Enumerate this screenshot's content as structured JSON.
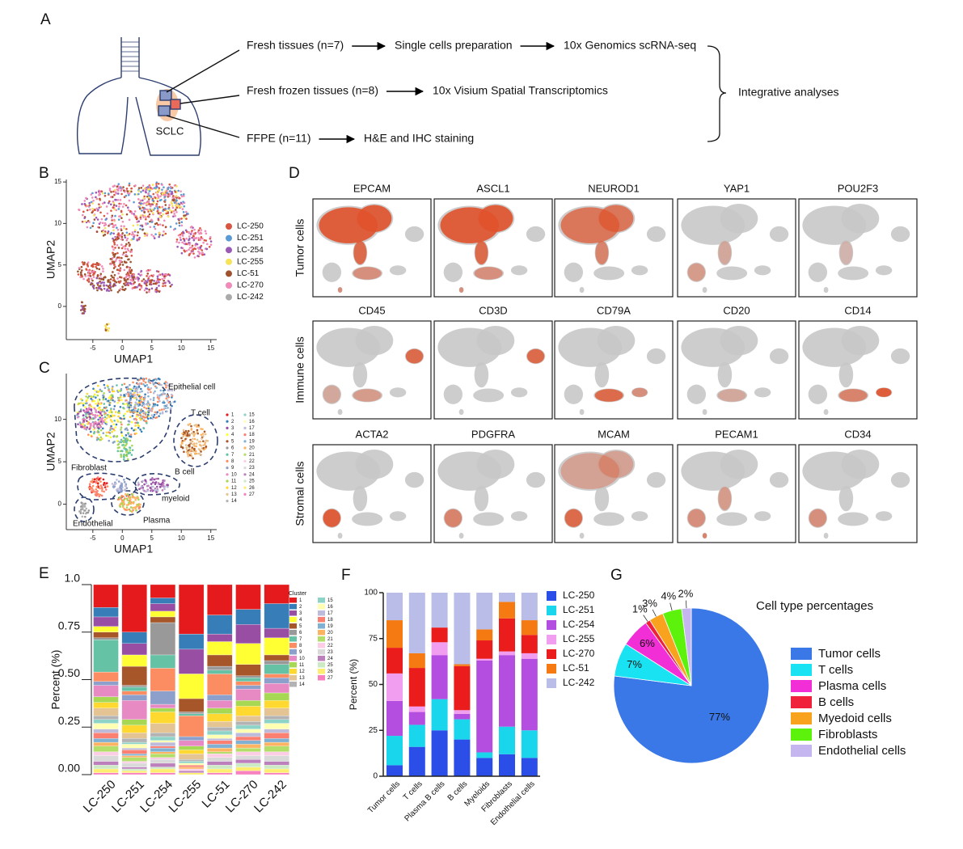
{
  "panel_labels": [
    "A",
    "B",
    "C",
    "D",
    "E",
    "F",
    "G"
  ],
  "panel_a": {
    "organ": "SCLC",
    "flows": [
      [
        "Fresh tissues (n=7)",
        "Single cells preparation",
        "10x Genomics scRNA-seq"
      ],
      [
        "Fresh frozen tissues (n=8)",
        "10x Visium Spatial Transcriptomics"
      ],
      [
        "FFPE (n=11)",
        "H&E and IHC staining"
      ]
    ],
    "integration": "Integrative analyses"
  },
  "panel_d": {
    "rows": [
      {
        "label": "Tumor cells",
        "genes": [
          "EPCAM",
          "ASCL1",
          "NEUROD1",
          "YAP1",
          "POU2F3"
        ]
      },
      {
        "label": "Immune cells",
        "genes": [
          "CD45",
          "CD3D",
          "CD79A",
          "CD20",
          "CD14"
        ]
      },
      {
        "label": "Stromal cells",
        "genes": [
          "ACTA2",
          "PDGFRA",
          "MCAM",
          "PECAM1",
          "CD34"
        ]
      }
    ]
  },
  "chart_data": [
    {
      "type": "scatter",
      "x_label": "UMAP1",
      "y_label": "UMAP2",
      "xlim": [
        -9.5,
        16
      ],
      "ylim": [
        -4,
        15.3
      ],
      "xticks": [
        -5,
        0,
        5,
        10,
        15
      ],
      "yticks": [
        0,
        5,
        10,
        15
      ],
      "series": [
        {
          "name": "LC-250",
          "color": "#d9553f"
        },
        {
          "name": "LC-251",
          "color": "#5b9bd5"
        },
        {
          "name": "LC-254",
          "color": "#9b59b6"
        },
        {
          "name": "LC-255",
          "color": "#f7e35a"
        },
        {
          "name": "LC-51",
          "color": "#a0522d"
        },
        {
          "name": "LC-270",
          "color": "#f08ab8"
        },
        {
          "name": "LC-242",
          "color": "#aaaaaa"
        }
      ]
    },
    {
      "type": "scatter",
      "x_label": "UMAP1",
      "y_label": "UMAP2",
      "xlim": [
        -9.5,
        16
      ],
      "ylim": [
        -3,
        15.4
      ],
      "xticks": [
        -5,
        0,
        5,
        10,
        15
      ],
      "yticks": [
        0,
        5,
        10
      ],
      "annotations": [
        "Epithelial cell",
        "T cell",
        "Fibroblast",
        "B cell",
        "myeloid",
        "Plasma",
        "Endothelial"
      ],
      "series": [
        {
          "name": "1",
          "color": "#e41a1c"
        },
        {
          "name": "2",
          "color": "#377eb8"
        },
        {
          "name": "3",
          "color": "#984ea3"
        },
        {
          "name": "4",
          "color": "#ffff33"
        },
        {
          "name": "5",
          "color": "#a65628"
        },
        {
          "name": "6",
          "color": "#999999"
        },
        {
          "name": "7",
          "color": "#66c2a5"
        },
        {
          "name": "8",
          "color": "#fc8d62"
        },
        {
          "name": "9",
          "color": "#8da0cb"
        },
        {
          "name": "10",
          "color": "#e78ac3"
        },
        {
          "name": "11",
          "color": "#a6d854"
        },
        {
          "name": "12",
          "color": "#ffd92f"
        },
        {
          "name": "13",
          "color": "#e5c494"
        },
        {
          "name": "14",
          "color": "#b3b3b3"
        },
        {
          "name": "15",
          "color": "#8dd3c7"
        },
        {
          "name": "16",
          "color": "#ffffb3"
        },
        {
          "name": "17",
          "color": "#bebada"
        },
        {
          "name": "18",
          "color": "#fb8072"
        },
        {
          "name": "19",
          "color": "#80b1d3"
        },
        {
          "name": "20",
          "color": "#fdb462"
        },
        {
          "name": "21",
          "color": "#b3de69"
        },
        {
          "name": "22",
          "color": "#fccde5"
        },
        {
          "name": "23",
          "color": "#d9d9d9"
        },
        {
          "name": "24",
          "color": "#bc80bd"
        },
        {
          "name": "25",
          "color": "#ccebc5"
        },
        {
          "name": "26",
          "color": "#ffed6f"
        },
        {
          "name": "27",
          "color": "#f781bf"
        }
      ]
    },
    {
      "type": "bar",
      "stacked": true,
      "y_label": "Percent (%)",
      "legend_title": "Cluster",
      "categories": [
        "LC-250",
        "LC-251",
        "LC-254",
        "LC-255",
        "LC-51",
        "LC-270",
        "LC-242"
      ],
      "ylim": [
        0,
        1
      ],
      "yticks": [
        {
          "value": 0,
          "label": "0.00"
        },
        0.25,
        {
          "value": 0.5,
          "label": "0.50"
        },
        0.75,
        {
          "value": 1,
          "label": "1.0"
        }
      ],
      "series": [
        {
          "name": "1",
          "color": "#e41a1c",
          "values": [
            0.12,
            0.25,
            0.07,
            0.26,
            0.16,
            0.13,
            0.1
          ]
        },
        {
          "name": "2",
          "color": "#377eb8",
          "values": [
            0.05,
            0.06,
            0.03,
            0.08,
            0.1,
            0.08,
            0.13
          ]
        },
        {
          "name": "3",
          "color": "#984ea3",
          "values": [
            0.05,
            0.06,
            0.04,
            0.13,
            0.04,
            0.1,
            0.05
          ]
        },
        {
          "name": "4",
          "color": "#ffff33",
          "values": [
            0.03,
            0.06,
            0.03,
            0.13,
            0.07,
            0.11,
            0.09
          ]
        },
        {
          "name": "5",
          "color": "#a65628",
          "values": [
            0.03,
            0.1,
            0.03,
            0.07,
            0.06,
            0.06,
            0.03
          ]
        },
        {
          "name": "6",
          "color": "#999999",
          "values": [
            0.01,
            0.01,
            0.17,
            0.01,
            0.02,
            0.01,
            0.02
          ]
        },
        {
          "name": "7",
          "color": "#66c2a5",
          "values": [
            0.17,
            0.02,
            0.07,
            0.01,
            0.02,
            0.02,
            0.05
          ]
        },
        {
          "name": "8",
          "color": "#fc8d62",
          "values": [
            0.05,
            0.02,
            0.12,
            0.11,
            0.11,
            0.02,
            0.02
          ]
        },
        {
          "name": "9",
          "color": "#8da0cb",
          "values": [
            0.02,
            0.03,
            0.07,
            0.02,
            0.03,
            0.02,
            0.03
          ]
        },
        {
          "name": "10",
          "color": "#e78ac3",
          "values": [
            0.06,
            0.1,
            0.02,
            0.03,
            0.04,
            0.06,
            0.05
          ]
        },
        {
          "name": "11",
          "color": "#a6d854",
          "values": [
            0.03,
            0.03,
            0.02,
            0.02,
            0.03,
            0.03,
            0.04
          ]
        },
        {
          "name": "12",
          "color": "#ffd92f",
          "values": [
            0.03,
            0.04,
            0.06,
            0.02,
            0.04,
            0.05,
            0.04
          ]
        },
        {
          "name": "13",
          "color": "#e5c494",
          "values": [
            0.04,
            0.03,
            0.05,
            0.03,
            0.03,
            0.03,
            0.04
          ]
        },
        {
          "name": "14",
          "color": "#b3b3b3",
          "values": [
            0.02,
            0.02,
            0.02,
            0.01,
            0.02,
            0.02,
            0.02
          ]
        },
        {
          "name": "15",
          "color": "#8dd3c7",
          "values": [
            0.02,
            0.01,
            0.02,
            0.01,
            0.02,
            0.02,
            0.02
          ]
        },
        {
          "name": "16",
          "color": "#ffffb3",
          "values": [
            0.03,
            0.02,
            0.01,
            0.01,
            0.02,
            0.02,
            0.03
          ]
        },
        {
          "name": "17",
          "color": "#bebada",
          "values": [
            0.02,
            0.01,
            0.02,
            0,
            0.01,
            0.02,
            0.02
          ]
        },
        {
          "name": "18",
          "color": "#fb8072",
          "values": [
            0.03,
            0.02,
            0.01,
            0.01,
            0.02,
            0.02,
            0.03
          ]
        },
        {
          "name": "19",
          "color": "#80b1d3",
          "values": [
            0.02,
            0.01,
            0.02,
            0,
            0.02,
            0.02,
            0.02
          ]
        },
        {
          "name": "20",
          "color": "#fdb462",
          "values": [
            0.02,
            0.01,
            0.01,
            0.01,
            0.02,
            0.02,
            0.02
          ]
        },
        {
          "name": "21",
          "color": "#b3de69",
          "values": [
            0.03,
            0.02,
            0.02,
            0,
            0.01,
            0.02,
            0.03
          ]
        },
        {
          "name": "22",
          "color": "#fccde5",
          "values": [
            0.02,
            0.01,
            0.01,
            0.01,
            0.02,
            0.02,
            0.02
          ]
        },
        {
          "name": "23",
          "color": "#d9d9d9",
          "values": [
            0.03,
            0.02,
            0.02,
            0,
            0.02,
            0.02,
            0.03
          ]
        },
        {
          "name": "24",
          "color": "#bc80bd",
          "values": [
            0.02,
            0.01,
            0.02,
            0.01,
            0.02,
            0.02,
            0.02
          ]
        },
        {
          "name": "25",
          "color": "#ccebc5",
          "values": [
            0.02,
            0.01,
            0.01,
            0,
            0.02,
            0.02,
            0.02
          ]
        },
        {
          "name": "26",
          "color": "#ffed6f",
          "values": [
            0.02,
            0.01,
            0.02,
            0.01,
            0.02,
            0.02,
            0.02
          ]
        },
        {
          "name": "27",
          "color": "#f781bf",
          "values": [
            0.01,
            0.01,
            0.01,
            0,
            0.01,
            0.02,
            0.01
          ]
        }
      ]
    },
    {
      "type": "bar",
      "stacked": true,
      "y_label": "Percent (%)",
      "categories": [
        "Tumor cells",
        "T cells",
        "Plasma B cells",
        "B cells",
        "Myeloids",
        "Fibroblasts",
        "Endothelial cells"
      ],
      "ylim": [
        0,
        100
      ],
      "yticks": [
        0,
        25,
        50,
        75,
        100
      ],
      "series": [
        {
          "name": "LC-250",
          "color": "#2b4de8",
          "values": [
            6,
            16,
            25,
            20,
            10,
            12,
            10
          ]
        },
        {
          "name": "LC-251",
          "color": "#1ad6ec",
          "values": [
            16,
            12,
            17,
            11,
            3,
            15,
            15
          ]
        },
        {
          "name": "LC-254",
          "color": "#b44ee0",
          "values": [
            19,
            7,
            24,
            3,
            50,
            39,
            39
          ]
        },
        {
          "name": "LC-255",
          "color": "#f29ef0",
          "values": [
            15,
            3,
            7,
            2,
            1,
            2,
            3
          ]
        },
        {
          "name": "LC-270",
          "color": "#ea1c1c",
          "values": [
            14,
            21,
            8,
            24,
            10,
            18,
            10
          ]
        },
        {
          "name": "LC-51",
          "color": "#f57a12",
          "values": [
            15,
            8,
            0,
            1,
            6,
            9,
            8
          ]
        },
        {
          "name": "LC-242",
          "color": "#b9bde8",
          "values": [
            15,
            33,
            19,
            39,
            20,
            5,
            15
          ]
        }
      ]
    },
    {
      "type": "pie",
      "title": "Cell type percentages",
      "categories": [
        "Tumor cells",
        "T cells",
        "Plasma cells",
        "B cells",
        "Myedoid cells",
        "Fibroblasts",
        "Endothelial cells"
      ],
      "values": [
        77,
        7,
        6,
        1,
        3,
        4,
        2
      ],
      "value_labels": [
        "77%",
        "7%",
        "6%",
        "1%",
        "3%",
        "4%",
        "2%"
      ],
      "colors": [
        "#3b78e7",
        "#19e3f3",
        "#f22fd6",
        "#f0213b",
        "#f9a21e",
        "#5df20c",
        "#c6b6f0"
      ]
    }
  ]
}
